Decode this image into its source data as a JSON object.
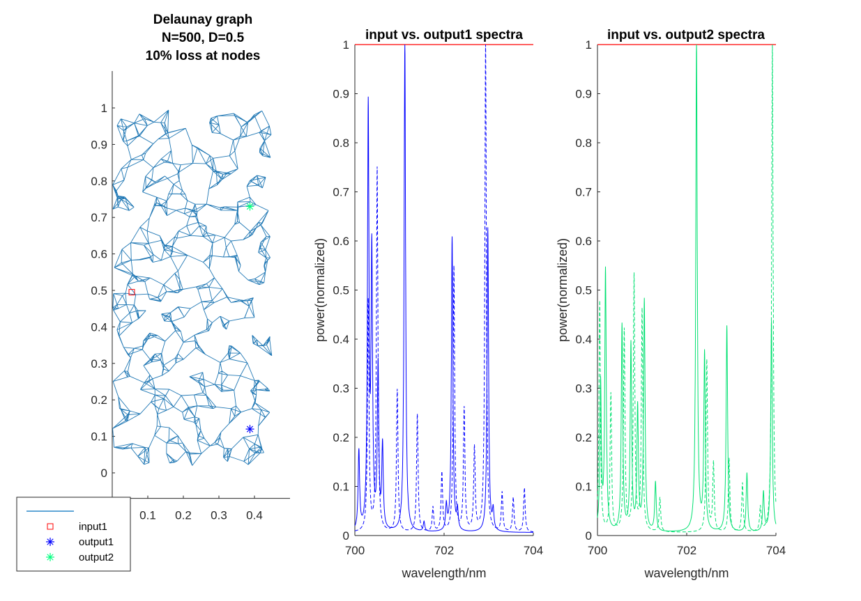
{
  "chart_data": [
    {
      "type": "scatter",
      "title": [
        "Delaunay graph",
        "N=500, D=0.5",
        "10% loss at nodes"
      ],
      "xlabel": "",
      "ylabel": "",
      "xlim": [
        0,
        0.5
      ],
      "ylim": [
        -0.07,
        1.1
      ],
      "xticks": [
        0.1,
        0.2,
        0.3,
        0.4
      ],
      "yticks": [
        0,
        0.1,
        0.2,
        0.3,
        0.4,
        0.5,
        0.6,
        0.7,
        0.8,
        0.9,
        1
      ],
      "graph": {
        "nodes": 500,
        "x_range": [
          0,
          0.45
        ],
        "y_range": [
          0.02,
          1.0
        ],
        "edge_color": "#1f77b4"
      },
      "series": [
        {
          "name": "",
          "style": "line",
          "color": "#0072BD"
        },
        {
          "name": "input1",
          "style": "square",
          "color": "#ff0000",
          "x": [
            0.0
          ],
          "y": [
            0.495
          ]
        },
        {
          "name": "output1",
          "style": "asterisk",
          "color": "#0000ff",
          "x": [
            0.45
          ],
          "y": [
            0.12
          ]
        },
        {
          "name": "output2",
          "style": "asterisk",
          "color": "#00ff7f",
          "x": [
            0.45
          ],
          "y": [
            0.73
          ]
        }
      ],
      "legend": "bottom-left"
    },
    {
      "type": "line",
      "title": "input vs. output1 spectra",
      "xlabel": "wavelength/nm",
      "ylabel": "power(normalized)",
      "xlim": [
        700,
        704
      ],
      "ylim": [
        0,
        1
      ],
      "xticks": [
        700,
        702,
        704
      ],
      "yticks": [
        0,
        0.1,
        0.2,
        0.3,
        0.4,
        0.5,
        0.6,
        0.7,
        0.8,
        0.9,
        1
      ],
      "series": [
        {
          "name": "input",
          "style": "solid",
          "color": "#ff0000",
          "x": [
            700,
            704
          ],
          "y": [
            1,
            1
          ]
        },
        {
          "name": "output1 (solid)",
          "style": "solid",
          "color": "#0000ff",
          "peaks": [
            [
              700.09,
              0.16
            ],
            [
              700.3,
              0.85
            ],
            [
              700.38,
              0.55
            ],
            [
              700.52,
              0.33
            ],
            [
              700.62,
              0.17
            ],
            [
              701.12,
              1.0
            ],
            [
              701.55,
              0.02
            ],
            [
              702.05,
              0.05
            ],
            [
              702.18,
              0.6
            ],
            [
              702.3,
              0.04
            ],
            [
              702.98,
              0.62
            ],
            [
              703.1,
              0.04
            ]
          ]
        },
        {
          "name": "output1 (dashed)",
          "style": "dashed",
          "color": "#0000ff",
          "peaks": [
            [
              700.3,
              0.47
            ],
            [
              700.5,
              0.74
            ],
            [
              700.95,
              0.29
            ],
            [
              701.4,
              0.24
            ],
            [
              701.75,
              0.05
            ],
            [
              701.95,
              0.12
            ],
            [
              702.22,
              0.54
            ],
            [
              702.45,
              0.25
            ],
            [
              702.68,
              0.17
            ],
            [
              702.93,
              1.0
            ],
            [
              703.3,
              0.08
            ],
            [
              703.55,
              0.07
            ],
            [
              703.8,
              0.09
            ]
          ]
        }
      ]
    },
    {
      "type": "line",
      "title": "input vs. output2 spectra",
      "xlabel": "wavelength/nm",
      "ylabel": "power(normalized)",
      "xlim": [
        700,
        704
      ],
      "ylim": [
        0,
        1
      ],
      "xticks": [
        700,
        702,
        704
      ],
      "yticks": [
        0,
        0.1,
        0.2,
        0.3,
        0.4,
        0.5,
        0.6,
        0.7,
        0.8,
        0.9,
        1
      ],
      "series": [
        {
          "name": "input",
          "style": "solid",
          "color": "#ff0000",
          "x": [
            700,
            704
          ],
          "y": [
            1,
            1
          ]
        },
        {
          "name": "output2 (solid)",
          "style": "solid",
          "color": "#00e070",
          "peaks": [
            [
              700.07,
              0.3
            ],
            [
              700.18,
              0.53
            ],
            [
              700.55,
              0.42
            ],
            [
              700.75,
              0.38
            ],
            [
              700.9,
              0.25
            ],
            [
              701.05,
              0.47
            ],
            [
              701.3,
              0.1
            ],
            [
              702.22,
              1.0
            ],
            [
              702.4,
              0.36
            ],
            [
              702.9,
              0.42
            ],
            [
              703.35,
              0.12
            ],
            [
              703.72,
              0.08
            ],
            [
              703.9,
              0.43
            ]
          ]
        },
        {
          "name": "output2 (dashed)",
          "style": "dashed",
          "color": "#00e070",
          "peaks": [
            [
              700.05,
              0.47
            ],
            [
              700.3,
              0.28
            ],
            [
              700.6,
              0.41
            ],
            [
              700.82,
              0.52
            ],
            [
              701.0,
              0.45
            ],
            [
              701.4,
              0.07
            ],
            [
              702.45,
              0.35
            ],
            [
              702.6,
              0.14
            ],
            [
              702.95,
              0.15
            ],
            [
              703.25,
              0.1
            ],
            [
              703.65,
              0.05
            ],
            [
              703.92,
              1.0
            ]
          ]
        }
      ]
    }
  ],
  "legend": {
    "items": [
      {
        "label": "",
        "symbol": "line",
        "color": "#0072BD"
      },
      {
        "label": "input1",
        "symbol": "square",
        "color": "#ff0000"
      },
      {
        "label": "output1",
        "symbol": "asterisk",
        "color": "#0000ff"
      },
      {
        "label": "output2",
        "symbol": "asterisk",
        "color": "#00ff7f"
      }
    ]
  }
}
